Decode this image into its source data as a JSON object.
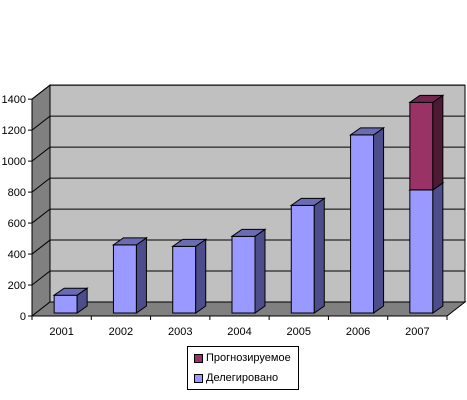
{
  "chart_data": {
    "type": "bar",
    "stacked": true,
    "three_d": true,
    "title": "",
    "xlabel": "",
    "ylabel": "",
    "categories": [
      "2001",
      "2002",
      "2003",
      "2004",
      "2005",
      "2006",
      "2007"
    ],
    "series": [
      {
        "name": "Делегировано",
        "values": [
          115,
          440,
          430,
          495,
          695,
          1150,
          795
        ],
        "color": "#9999ff",
        "side_color": "#4d4d8c",
        "top_color": "#6b6bb3"
      },
      {
        "name": "Прогнозируемое",
        "values": [
          0,
          0,
          0,
          0,
          0,
          0,
          565
        ],
        "color": "#993366",
        "side_color": "#4d1a33",
        "top_color": "#73264d"
      }
    ],
    "ylim": [
      0,
      1400
    ],
    "yticks": [
      "0",
      "200",
      "400",
      "600",
      "800",
      "1000",
      "1200",
      "1400"
    ],
    "grid": true,
    "plot_background": "#c0c0c0",
    "legend_position": "bottom-center"
  },
  "legend": {
    "items": [
      {
        "label": "Прогнозируемое",
        "color": "#993366"
      },
      {
        "label": "Делегировано",
        "color": "#9999ff"
      }
    ]
  }
}
